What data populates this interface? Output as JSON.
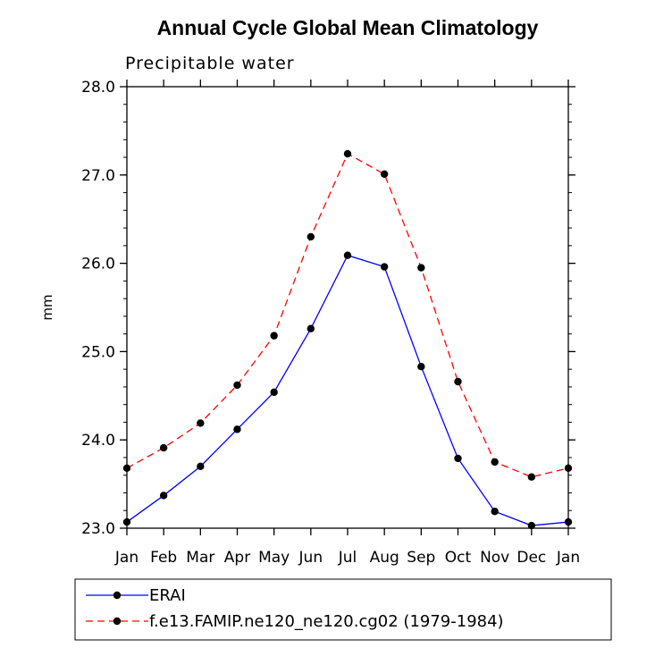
{
  "chart_data": {
    "type": "line",
    "title": "Annual Cycle Global Mean Climatology",
    "subtitle": "Precipitable water",
    "xlabel": "",
    "ylabel": "mm",
    "categories": [
      "Jan",
      "Feb",
      "Mar",
      "Apr",
      "May",
      "Jun",
      "Jul",
      "Aug",
      "Sep",
      "Oct",
      "Nov",
      "Dec",
      "Jan"
    ],
    "ylim": [
      23.0,
      28.0
    ],
    "yticks": [
      "23.0",
      "24.0",
      "25.0",
      "26.0",
      "27.0",
      "28.0"
    ],
    "grid": false,
    "legend_position": "bottom",
    "series": [
      {
        "name": "ERAI",
        "color": "#0000ff",
        "line_style": "solid",
        "marker": "filled-circle",
        "values": [
          23.07,
          23.37,
          23.7,
          24.12,
          24.54,
          25.26,
          26.09,
          25.96,
          24.83,
          23.79,
          23.19,
          23.03,
          23.07
        ]
      },
      {
        "name": "f.e13.FAMIP.ne120_ne120.cg02 (1979-1984)",
        "color": "#ff0000",
        "line_style": "dashed",
        "marker": "filled-circle",
        "values": [
          23.68,
          23.91,
          24.19,
          24.62,
          25.18,
          26.3,
          27.24,
          27.01,
          25.95,
          24.66,
          23.75,
          23.58,
          23.68
        ]
      }
    ]
  }
}
